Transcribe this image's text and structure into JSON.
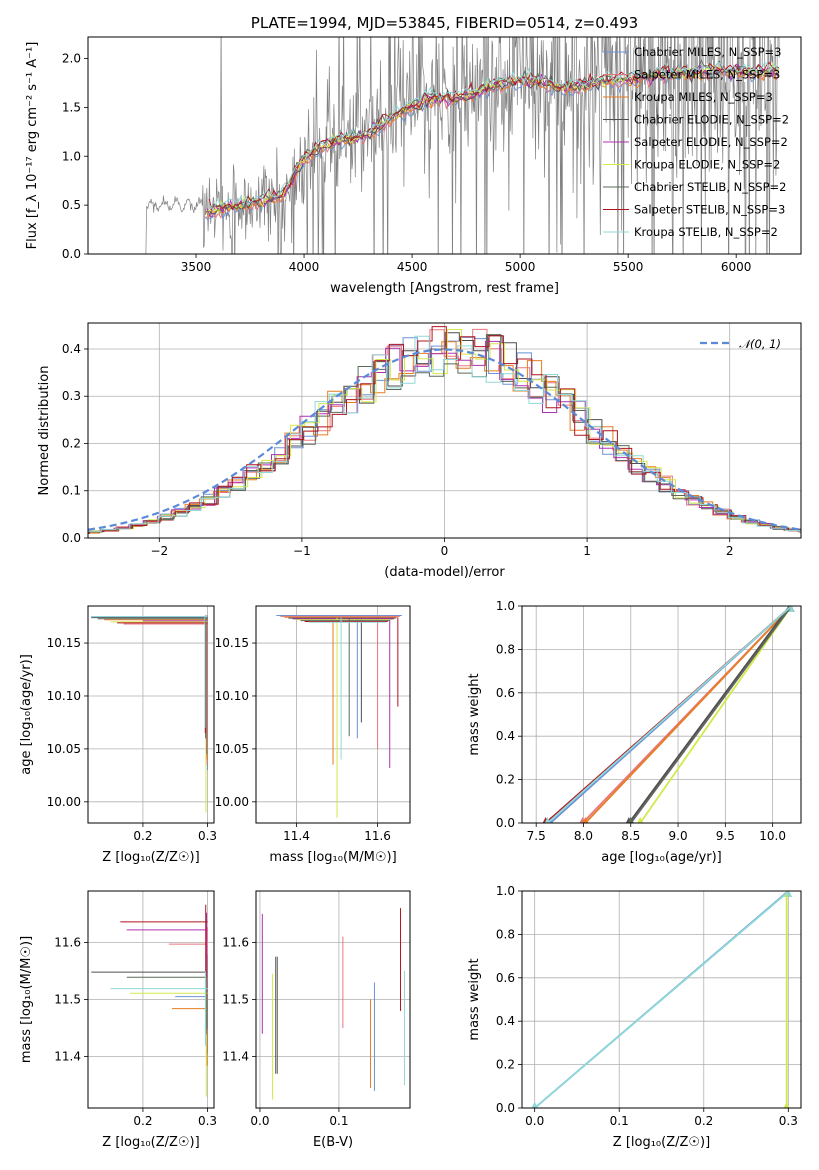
{
  "chart_data": [
    {
      "id": "spectrum",
      "type": "line",
      "title": "PLATE=1994, MJD=53845, FIBERID=0514, z=0.493",
      "xlabel": "wavelength [Angstrom, rest frame]",
      "ylabel": "Flux [f_λ 10⁻¹⁷ erg cm⁻² s⁻¹ A⁻¹]",
      "xlim": [
        3000,
        6300
      ],
      "ylim": [
        0,
        2.22
      ],
      "xticks": [
        3500,
        4000,
        4500,
        5000,
        5500,
        6000
      ],
      "yticks": [
        0.0,
        0.5,
        1.0,
        1.5,
        2.0
      ],
      "grid": false,
      "legend_position": "upper-right",
      "data_series": {
        "name": "data",
        "x_range": [
          3250,
          6200
        ],
        "color": "#808080"
      },
      "series": [
        {
          "name": "Chabrier MILES, N_SSP=3",
          "color": "#6b93d6"
        },
        {
          "name": "Salpeter MILES, N_SSP=3",
          "color": "#e8767e"
        },
        {
          "name": "Kroupa MILES, N_SSP=3",
          "color": "#e67e22"
        },
        {
          "name": "Chabrier ELODIE, N_SSP=2",
          "color": "#4f4f4f"
        },
        {
          "name": "Salpeter ELODIE, N_SSP=2",
          "color": "#b030b0"
        },
        {
          "name": "Kroupa ELODIE, N_SSP=2",
          "color": "#d4e84a"
        },
        {
          "name": "Chabrier STELIB, N_SSP=2",
          "color": "#5a6b5a"
        },
        {
          "name": "Salpeter STELIB, N_SSP=3",
          "color": "#b0141e"
        },
        {
          "name": "Kroupa STELIB, N_SSP=2",
          "color": "#8fd8d8"
        }
      ],
      "model_shape": {
        "x": [
          3550,
          3600,
          3700,
          3800,
          3900,
          3950,
          4000,
          4050,
          4100,
          4200,
          4300,
          4400,
          4500,
          4600,
          4700,
          4800,
          4900,
          5000,
          5100,
          5200,
          5300,
          5400,
          5500,
          5600,
          5700,
          5800,
          5900,
          6000,
          6100,
          6200
        ],
        "y": [
          0.42,
          0.46,
          0.5,
          0.54,
          0.6,
          0.78,
          0.98,
          1.06,
          1.12,
          1.18,
          1.23,
          1.38,
          1.52,
          1.6,
          1.6,
          1.65,
          1.74,
          1.77,
          1.76,
          1.69,
          1.73,
          1.78,
          1.78,
          1.82,
          1.83,
          1.85,
          1.88,
          1.87,
          1.86,
          1.88
        ]
      }
    },
    {
      "id": "residuals",
      "type": "step",
      "xlabel": "(data-model)/error",
      "ylabel": "Normed distribution",
      "xlim": [
        -2.5,
        2.5
      ],
      "ylim": [
        0,
        0.455
      ],
      "xticks": [
        -2,
        -1,
        0,
        1,
        2
      ],
      "yticks": [
        0.0,
        0.1,
        0.2,
        0.3,
        0.4
      ],
      "grid": true,
      "legend": [
        "𝒩(0, 1)"
      ],
      "legend_position": "top-right",
      "normal_curve": {
        "mean": 0,
        "sigma": 1,
        "color": "#5b8ad8"
      },
      "bin_width": 0.1
    },
    {
      "id": "age-vs-Z",
      "type": "errorbar",
      "xlabel": "Z [log₁₀(Z/Z☉)]",
      "ylabel": "age  [log₁₀(age/yr)]",
      "xlim": [
        0.115,
        0.31
      ],
      "ylim": [
        9.98,
        10.185
      ],
      "xticks": [
        0.2,
        0.3
      ],
      "yticks": [
        10.0,
        10.05,
        10.1,
        10.15
      ],
      "grid": true
    },
    {
      "id": "age-vs-mass",
      "type": "errorbar",
      "xlabel": "mass [log₁₀(M/M☉)]",
      "ylabel": "",
      "xlim": [
        11.3,
        11.68
      ],
      "ylim": [
        9.98,
        10.185
      ],
      "xticks": [
        11.4,
        11.6
      ],
      "yticks": [
        10.0,
        10.05,
        10.1,
        10.15
      ],
      "grid": true
    },
    {
      "id": "cumulative-age",
      "type": "line",
      "xlabel": "age  [log₁₀(age/yr)]",
      "ylabel": "mass weight",
      "xlim": [
        7.35,
        10.3
      ],
      "ylim": [
        0,
        1
      ],
      "xticks": [
        7.5,
        8.0,
        8.5,
        9.0,
        9.5,
        10.0
      ],
      "yticks": [
        0.0,
        0.2,
        0.4,
        0.6,
        0.8,
        1.0
      ],
      "grid": true,
      "lines": [
        {
          "series": "Chabrier MILES, N_SSP=3",
          "x": [
            7.65,
            10.2
          ],
          "y": [
            0,
            1
          ]
        },
        {
          "series": "Salpeter MILES, N_SSP=3",
          "x": [
            7.99,
            10.2
          ],
          "y": [
            0,
            1
          ]
        },
        {
          "series": "Kroupa MILES, N_SSP=3",
          "x": [
            8.02,
            10.2
          ],
          "y": [
            0,
            1
          ]
        },
        {
          "series": "Chabrier ELODIE, N_SSP=2",
          "x": [
            8.48,
            10.18
          ],
          "y": [
            0,
            1
          ]
        },
        {
          "series": "Salpeter ELODIE, N_SSP=2",
          "x": [
            8.5,
            10.2
          ],
          "y": [
            0,
            1
          ]
        },
        {
          "series": "Kroupa ELODIE, N_SSP=2",
          "x": [
            8.6,
            10.2
          ],
          "y": [
            0,
            1
          ]
        },
        {
          "series": "Chabrier STELIB, N_SSP=2",
          "x": [
            8.5,
            10.2
          ],
          "y": [
            0,
            1
          ]
        },
        {
          "series": "Salpeter STELIB, N_SSP=3",
          "x": [
            7.6,
            10.2
          ],
          "y": [
            0,
            1
          ]
        },
        {
          "series": "Kroupa STELIB, N_SSP=2",
          "x": [
            7.62,
            10.2
          ],
          "y": [
            0,
            1
          ]
        }
      ]
    },
    {
      "id": "mass-vs-Z",
      "type": "errorbar",
      "xlabel": "Z [log₁₀(Z/Z☉)]",
      "ylabel": "mass [log₁₀(M/M☉)]",
      "xlim": [
        0.115,
        0.31
      ],
      "ylim": [
        11.31,
        11.69
      ],
      "xticks": [
        0.2,
        0.3
      ],
      "yticks": [
        11.4,
        11.5,
        11.6
      ],
      "grid": true
    },
    {
      "id": "mass-vs-EBV",
      "type": "errorbar",
      "xlabel": "E(B-V)",
      "ylabel": "",
      "xlim": [
        -0.005,
        0.19
      ],
      "ylim": [
        11.31,
        11.69
      ],
      "xticks": [
        0.0,
        0.1
      ],
      "yticks": [
        11.4,
        11.5,
        11.6
      ],
      "grid": true
    },
    {
      "id": "cumulative-Z",
      "type": "line",
      "xlabel": "Z [log₁₀(Z/Z☉)]",
      "ylabel": "mass weight",
      "xlim": [
        -0.015,
        0.315
      ],
      "ylim": [
        0,
        1
      ],
      "xticks": [
        0.0,
        0.1,
        0.2,
        0.3
      ],
      "yticks": [
        0.0,
        0.2,
        0.4,
        0.6,
        0.8,
        1.0
      ],
      "grid": true,
      "lines": [
        {
          "series": "Chabrier MILES, N_SSP=3",
          "x": [
            0.0,
            0.3
          ],
          "y": [
            0,
            1
          ]
        },
        {
          "series": "Kroupa ELODIE, N_SSP=2",
          "x": [
            0.298,
            0.298
          ],
          "y": [
            0,
            1
          ]
        },
        {
          "series": "Kroupa STELIB, N_SSP=2",
          "x": [
            0.0,
            0.301
          ],
          "y": [
            0,
            1
          ]
        }
      ]
    }
  ]
}
